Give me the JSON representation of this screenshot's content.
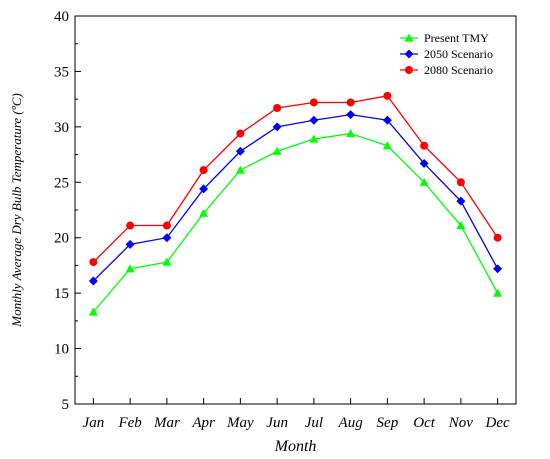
{
  "chart_data": {
    "type": "line",
    "title": "",
    "xlabel": "Month",
    "ylabel": "Monthly Average Dry Bulb Temperature (ºC)",
    "categories": [
      "Jan",
      "Feb",
      "Mar",
      "Apr",
      "May",
      "Jun",
      "Jul",
      "Aug",
      "Sep",
      "Oct",
      "Nov",
      "Dec"
    ],
    "ylim": [
      5,
      40
    ],
    "yticks": [
      "5",
      "10",
      "15",
      "20",
      "25",
      "30",
      "35",
      "40"
    ],
    "grid": false,
    "legend_position": "top-right",
    "series": [
      {
        "name": "Present TMY",
        "color": "#00ff00",
        "marker": "triangle",
        "values": [
          13.3,
          17.2,
          17.8,
          22.2,
          26.1,
          27.8,
          28.9,
          29.4,
          28.3,
          25.0,
          21.1,
          15.0
        ]
      },
      {
        "name": "2050 Scenario",
        "color": "#0000ff",
        "marker": "diamond",
        "values": [
          16.1,
          19.4,
          20.0,
          24.4,
          27.8,
          30.0,
          30.6,
          31.1,
          30.6,
          26.7,
          23.3,
          17.2
        ]
      },
      {
        "name": "2080 Scenario",
        "color": "#ff0000",
        "marker": "circle",
        "values": [
          17.8,
          21.1,
          21.1,
          26.1,
          29.4,
          31.7,
          32.2,
          32.2,
          32.8,
          28.3,
          25.0,
          20.0
        ]
      }
    ]
  }
}
